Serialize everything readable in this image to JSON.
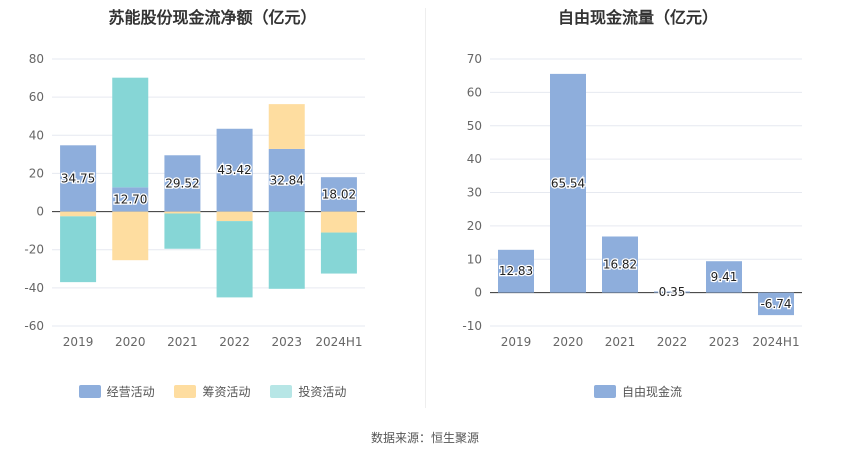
{
  "source_label": "数据来源：恒生聚源",
  "colors": {
    "operating": "#8eaedc",
    "financing": "#fedda0",
    "investing": "#86d6d6",
    "fcf": "#8eaedc"
  },
  "chart_data": [
    {
      "type": "bar",
      "stacked": true,
      "title": "苏能股份现金流净额（亿元）",
      "categories": [
        "2019",
        "2020",
        "2021",
        "2022",
        "2023",
        "2024H1"
      ],
      "ylim": [
        -60,
        80
      ],
      "yticks": [
        -60,
        -40,
        -20,
        0,
        20,
        40,
        60,
        80
      ],
      "grid": true,
      "legend_position": "bottom",
      "series": [
        {
          "name": "经营活动",
          "color_key": "operating",
          "values": [
            34.75,
            12.7,
            29.52,
            43.42,
            32.84,
            18.02
          ],
          "labels": [
            "34.75",
            "12.70",
            "29.52",
            "43.42",
            "32.84",
            "18.02"
          ]
        },
        {
          "name": "筹资活动",
          "color_key": "financing",
          "values": [
            -2.5,
            -25.5,
            -1.0,
            -5.0,
            23.5,
            -11.0
          ]
        },
        {
          "name": "投资活动",
          "color_key": "investing",
          "values": [
            -34.5,
            57.5,
            -18.5,
            -40.0,
            -40.5,
            -21.5
          ]
        }
      ]
    },
    {
      "type": "bar",
      "title": "自由现金流量（亿元）",
      "categories": [
        "2019",
        "2020",
        "2021",
        "2022",
        "2023",
        "2024H1"
      ],
      "ylim": [
        -10,
        70
      ],
      "yticks": [
        -10,
        0,
        10,
        20,
        30,
        40,
        50,
        60,
        70
      ],
      "grid": true,
      "legend_position": "bottom",
      "series": [
        {
          "name": "自由现金流",
          "color_key": "fcf",
          "values": [
            12.83,
            65.54,
            16.82,
            0.35,
            9.41,
            -6.74
          ],
          "labels": [
            "12.83",
            "65.54",
            "16.82",
            "0.35",
            "9.41",
            "-6.74"
          ]
        }
      ]
    }
  ]
}
